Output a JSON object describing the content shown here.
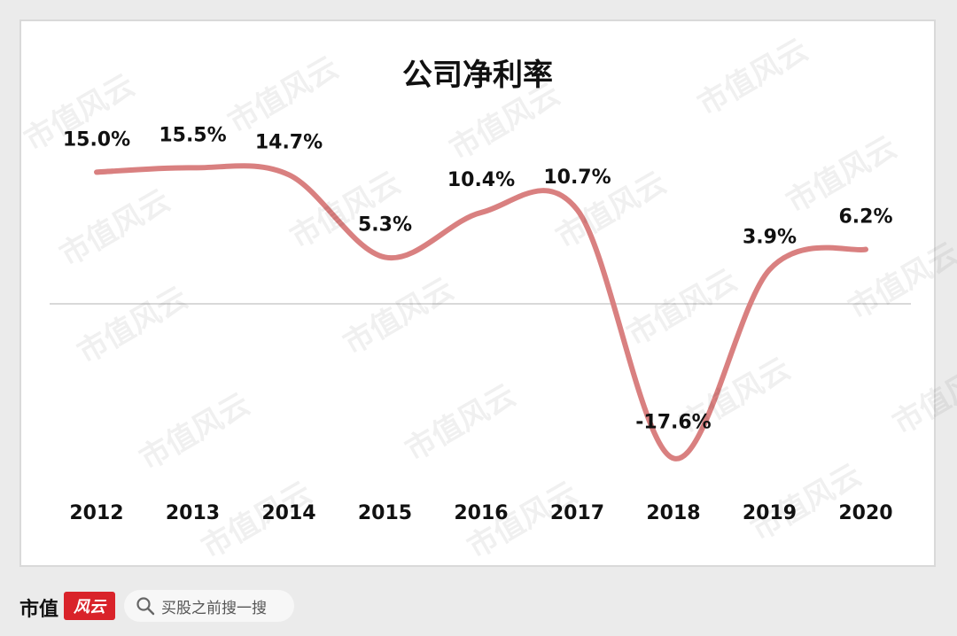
{
  "chart_data": {
    "type": "line",
    "title": "公司净利率",
    "categories": [
      "2012",
      "2013",
      "2014",
      "2015",
      "2016",
      "2017",
      "2018",
      "2019",
      "2020"
    ],
    "values": [
      15.0,
      15.5,
      14.7,
      5.3,
      10.4,
      10.7,
      -17.6,
      3.9,
      6.2
    ],
    "value_labels": [
      "15.0%",
      "15.5%",
      "14.7%",
      "5.3%",
      "10.4%",
      "10.7%",
      "-17.6%",
      "3.9%",
      "6.2%"
    ],
    "line_color": "#d98080",
    "zero_line_color": "#d9d9d9",
    "ylim": [
      -19,
      18
    ],
    "grid": false,
    "legend": "none"
  },
  "watermark": "市值风云",
  "footer": {
    "brand_text": "市值",
    "brand_logo_text": "风云",
    "search_text": "买股之前搜一搜",
    "search_icon": "search-icon"
  }
}
